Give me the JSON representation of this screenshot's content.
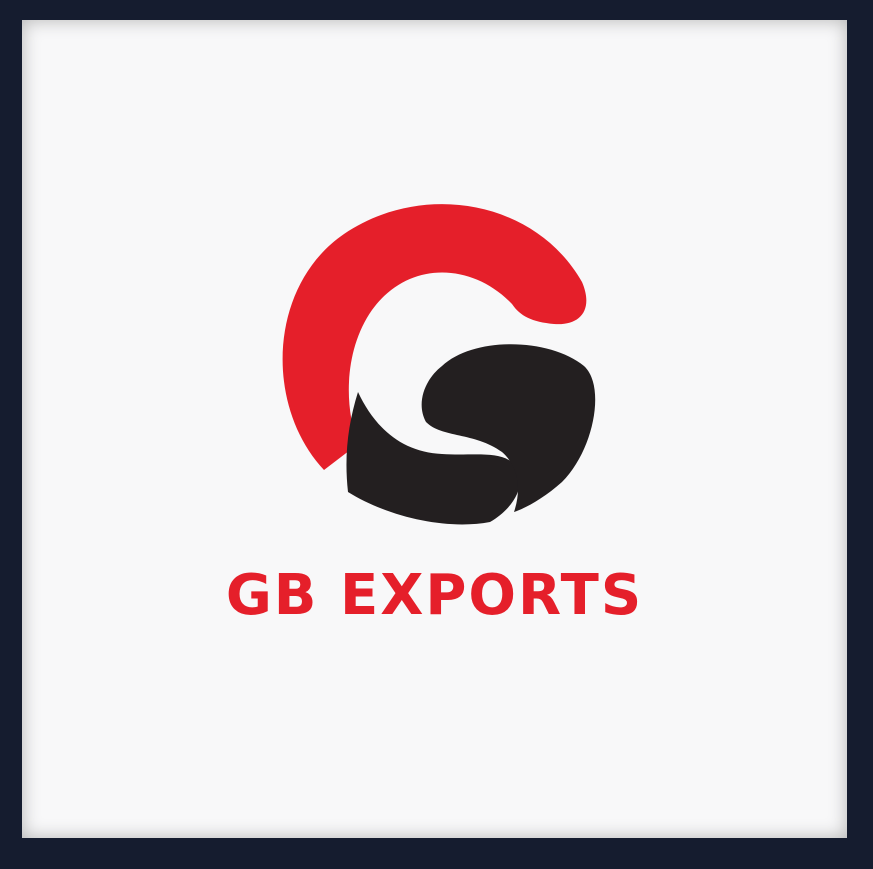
{
  "brand": {
    "name": "GB EXPORTS",
    "colors": {
      "red": "#e51f2a",
      "black": "#231f20",
      "background": "#f8f8f9",
      "frame": "#151c2f"
    },
    "icon": "gb-monogram-logo"
  }
}
